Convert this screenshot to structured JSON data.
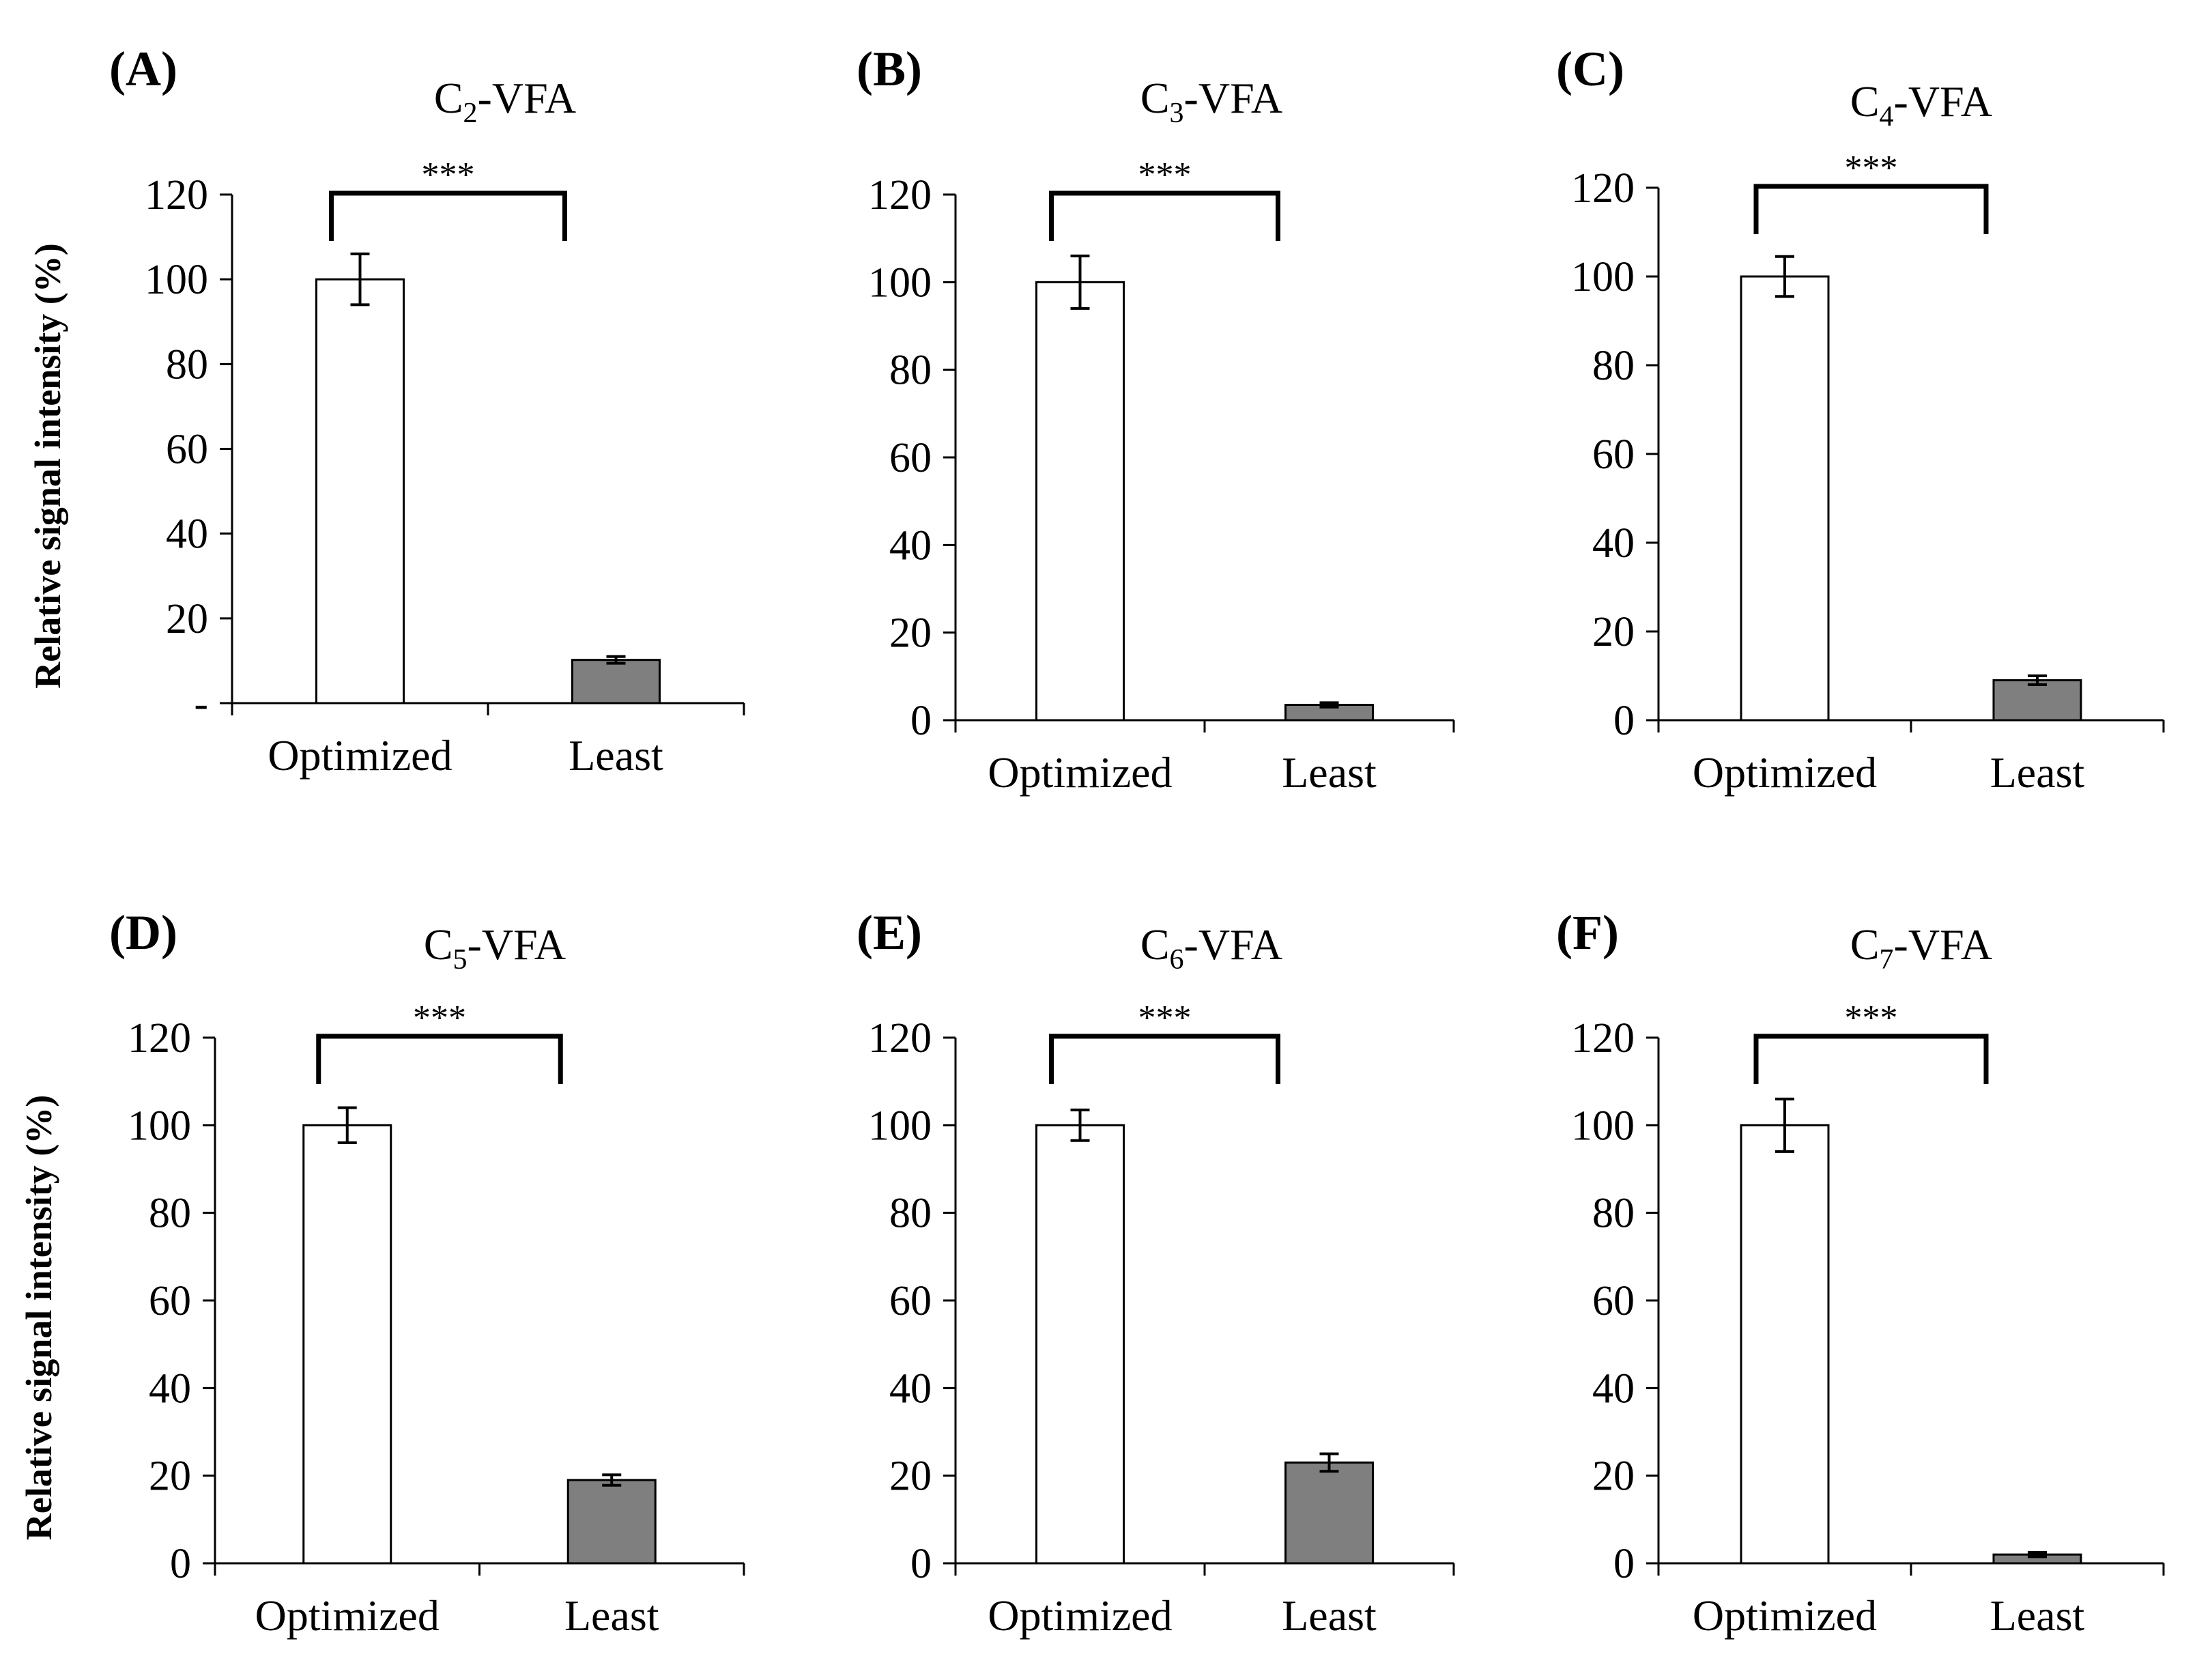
{
  "chart_data": [
    {
      "type": "bar",
      "panel": "(A)",
      "title": "C2-VFA",
      "title_main": "C",
      "title_sub": "2",
      "title_rest": "-VFA",
      "xlabel": "",
      "ylabel": "Relative signal intensity (%)",
      "categories": [
        "Optimized",
        "Least"
      ],
      "values": [
        100,
        10.2
      ],
      "errors": [
        6,
        0.8
      ],
      "colors": [
        "#ffffff",
        "#7f7f7f"
      ],
      "ylim": [
        0,
        120
      ],
      "yticks": [
        0,
        20,
        40,
        60,
        80,
        100,
        120
      ],
      "ytick_labels": [
        "-",
        "20",
        "40",
        "60",
        "80",
        "100",
        "120"
      ],
      "significance": "***"
    },
    {
      "type": "bar",
      "panel": "(B)",
      "title": "C3-VFA",
      "title_main": "C",
      "title_sub": "3",
      "title_rest": "-VFA",
      "xlabel": "",
      "ylabel": "",
      "categories": [
        "Optimized",
        "Least"
      ],
      "values": [
        100,
        3.5
      ],
      "errors": [
        6,
        0.5
      ],
      "colors": [
        "#ffffff",
        "#7f7f7f"
      ],
      "ylim": [
        0,
        120
      ],
      "yticks": [
        0,
        20,
        40,
        60,
        80,
        100,
        120
      ],
      "ytick_labels": [
        "0",
        "20",
        "40",
        "60",
        "80",
        "100",
        "120"
      ],
      "significance": "***"
    },
    {
      "type": "bar",
      "panel": "(C)",
      "title": "C4-VFA",
      "title_main": "C",
      "title_sub": "4",
      "title_rest": "-VFA",
      "xlabel": "",
      "ylabel": "",
      "categories": [
        "Optimized",
        "Least"
      ],
      "values": [
        100,
        9
      ],
      "errors": [
        4.5,
        1
      ],
      "colors": [
        "#ffffff",
        "#7f7f7f"
      ],
      "ylim": [
        0,
        120
      ],
      "yticks": [
        0,
        20,
        40,
        60,
        80,
        100,
        120
      ],
      "ytick_labels": [
        "0",
        "20",
        "40",
        "60",
        "80",
        "100",
        "120"
      ],
      "significance": "***"
    },
    {
      "type": "bar",
      "panel": "(D)",
      "title": "C5-VFA",
      "title_main": "C",
      "title_sub": "5",
      "title_rest": "-VFA",
      "xlabel": "",
      "ylabel": "Relative signal intensity (%)",
      "categories": [
        "Optimized",
        "Least"
      ],
      "values": [
        100,
        19
      ],
      "errors": [
        4,
        1.2
      ],
      "colors": [
        "#ffffff",
        "#7f7f7f"
      ],
      "ylim": [
        0,
        120
      ],
      "yticks": [
        0,
        20,
        40,
        60,
        80,
        100,
        120
      ],
      "ytick_labels": [
        "0",
        "20",
        "40",
        "60",
        "80",
        "100",
        "120"
      ],
      "significance": "***"
    },
    {
      "type": "bar",
      "panel": "(E)",
      "title": "C6-VFA",
      "title_main": "C",
      "title_sub": "6",
      "title_rest": "-VFA",
      "xlabel": "",
      "ylabel": "",
      "categories": [
        "Optimized",
        "Least"
      ],
      "values": [
        100,
        23
      ],
      "errors": [
        3.5,
        2
      ],
      "colors": [
        "#ffffff",
        "#7f7f7f"
      ],
      "ylim": [
        0,
        120
      ],
      "yticks": [
        0,
        20,
        40,
        60,
        80,
        100,
        120
      ],
      "ytick_labels": [
        "0",
        "20",
        "40",
        "60",
        "80",
        "100",
        "120"
      ],
      "significance": "***"
    },
    {
      "type": "bar",
      "panel": "(F)",
      "title": "C7-VFA",
      "title_main": "C",
      "title_sub": "7",
      "title_rest": "-VFA",
      "xlabel": "",
      "ylabel": "",
      "categories": [
        "Optimized",
        "Least"
      ],
      "values": [
        100,
        2
      ],
      "errors": [
        6,
        0.5
      ],
      "colors": [
        "#ffffff",
        "#7f7f7f"
      ],
      "ylim": [
        0,
        120
      ],
      "yticks": [
        0,
        20,
        40,
        60,
        80,
        100,
        120
      ],
      "ytick_labels": [
        "0",
        "20",
        "40",
        "60",
        "80",
        "100",
        "120"
      ],
      "significance": "***"
    }
  ]
}
